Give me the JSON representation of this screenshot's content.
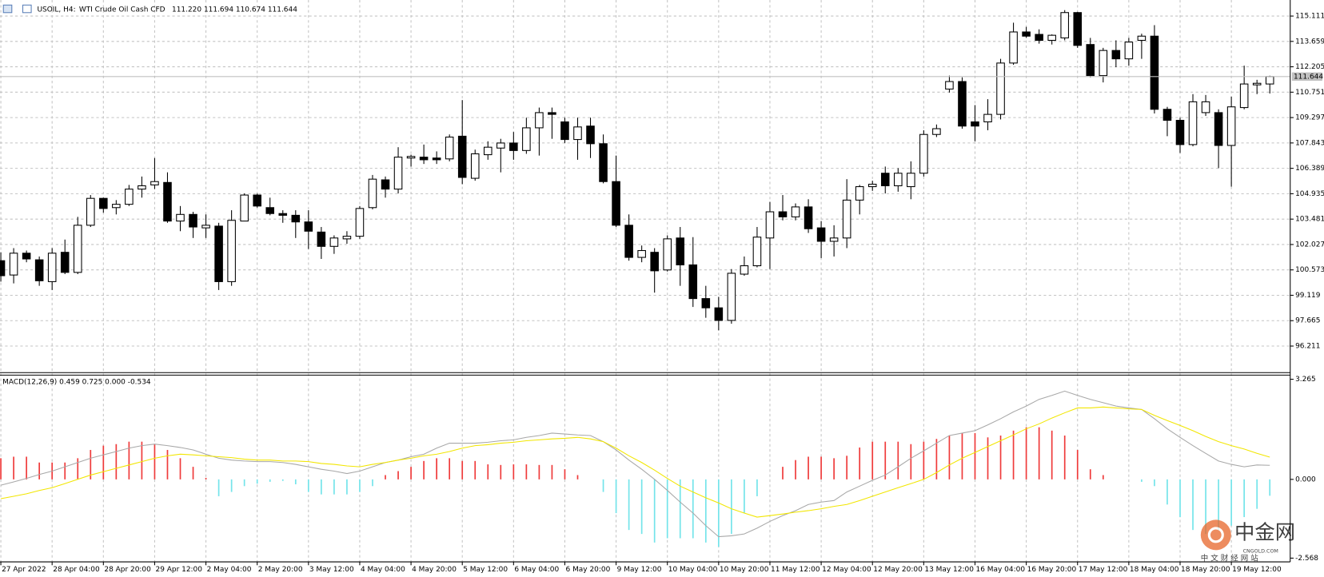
{
  "chart_data": [
    {
      "type": "candlestick",
      "symbol": "USOIL, H4:",
      "description": "WTI Crude Oil Cash CFD",
      "ohlc_text": "111.220 111.694 110.674 111.644",
      "open": [
        101.1,
        100.28,
        101.53,
        101.15,
        99.9,
        101.58,
        100.43,
        103.13,
        104.67,
        104.14,
        104.33,
        105.2,
        105.44,
        105.58,
        103.37,
        103.75,
        102.98,
        103.08,
        99.9,
        103.37,
        104.86,
        104.14,
        103.8,
        103.7,
        103.32,
        102.74,
        101.92,
        102.35,
        102.5,
        104.14,
        105.73,
        105.2,
        106.98,
        107.03,
        106.98,
        106.93,
        108.23,
        105.82,
        107.17,
        107.55,
        107.84,
        107.41,
        108.71,
        109.58,
        109.05,
        108.04,
        108.81,
        107.8,
        105.63,
        103.13,
        101.29,
        101.58,
        100.57,
        102.4,
        100.86,
        98.93,
        98.4,
        97.68,
        100.33,
        100.81,
        102.4,
        103.9,
        103.61,
        104.18,
        102.98,
        102.21,
        102.4,
        104.57,
        105.34,
        106.11,
        105.39,
        105.34,
        106.11,
        108.33,
        110.93,
        111.36,
        109.05,
        109.05,
        109.48,
        112.42,
        114.2,
        114.06,
        113.72,
        113.86,
        115.31,
        113.48,
        111.7,
        113.14,
        112.66,
        113.72,
        113.96,
        109.77,
        109.14,
        107.75,
        109.58,
        109.58,
        107.7,
        109.87,
        111.17,
        111.22
      ],
      "high": [
        101.58,
        101.82,
        101.68,
        101.34,
        101.82,
        102.31,
        103.61,
        104.86,
        104.71,
        104.57,
        105.44,
        105.92,
        106.98,
        106.16,
        104.23,
        103.9,
        103.75,
        103.27,
        103.99,
        104.95,
        104.95,
        104.71,
        103.99,
        103.99,
        103.99,
        103.03,
        102.55,
        102.79,
        104.23,
        106.01,
        105.92,
        107.6,
        107.17,
        107.75,
        107.36,
        108.33,
        110.3,
        107.46,
        107.94,
        108.08,
        108.47,
        109.29,
        109.87,
        109.87,
        109.29,
        109.29,
        109.29,
        108.33,
        107.12,
        103.75,
        101.97,
        101.82,
        102.55,
        103.03,
        102.45,
        99.66,
        99.03,
        100.62,
        101.34,
        103.03,
        104.47,
        104.86,
        104.38,
        104.62,
        103.37,
        103.13,
        105.77,
        105.44,
        105.68,
        106.49,
        106.4,
        106.79,
        108.57,
        108.9,
        111.7,
        111.6,
        110.01,
        110.35,
        112.66,
        114.73,
        114.49,
        114.35,
        114.06,
        115.45,
        115.35,
        113.86,
        113.29,
        113.72,
        113.86,
        114.1,
        114.59,
        109.91,
        109.29,
        110.64,
        110.59,
        109.77,
        110.49,
        112.27,
        111.46,
        111.694
      ],
      "low": [
        99.9,
        99.8,
        101.01,
        99.66,
        99.42,
        100.33,
        100.33,
        103.03,
        103.85,
        103.75,
        104.23,
        104.71,
        105.2,
        103.27,
        102.79,
        102.4,
        102.4,
        99.42,
        99.66,
        103.37,
        104.14,
        103.7,
        103.27,
        102.4,
        101.77,
        101.2,
        101.49,
        102.07,
        102.35,
        104.04,
        104.71,
        104.95,
        106.49,
        106.64,
        106.64,
        106.79,
        105.48,
        105.68,
        106.88,
        106.16,
        106.88,
        107.22,
        107.12,
        108.08,
        107.84,
        106.88,
        106.98,
        105.53,
        103.03,
        101.1,
        101.01,
        99.27,
        100.48,
        99.66,
        98.45,
        97.83,
        97.11,
        97.49,
        100.24,
        100.72,
        100.62,
        103.41,
        103.41,
        102.69,
        101.25,
        101.34,
        101.82,
        103.75,
        105.1,
        104.95,
        105.05,
        104.62,
        105.92,
        108.18,
        110.73,
        108.66,
        107.94,
        108.57,
        109.19,
        112.32,
        113.86,
        113.53,
        113.48,
        113.72,
        113.29,
        111.6,
        111.31,
        112.18,
        112.27,
        112.66,
        109.53,
        108.23,
        107.27,
        107.65,
        109.39,
        106.4,
        105.34,
        109.77,
        110.64,
        110.674
      ],
      "close": [
        100.24,
        101.53,
        101.2,
        99.95,
        101.53,
        100.43,
        103.13,
        104.67,
        104.09,
        104.33,
        105.2,
        105.39,
        105.63,
        103.37,
        103.75,
        103.03,
        103.13,
        99.9,
        103.41,
        104.86,
        104.23,
        103.8,
        103.7,
        103.32,
        102.79,
        101.92,
        102.4,
        102.5,
        104.09,
        105.77,
        105.2,
        107.03,
        107.07,
        106.88,
        106.88,
        108.18,
        105.87,
        107.22,
        107.6,
        107.84,
        107.41,
        108.71,
        109.58,
        109.48,
        108.04,
        108.76,
        107.8,
        105.63,
        103.13,
        101.29,
        101.68,
        100.52,
        102.35,
        100.86,
        98.93,
        98.4,
        97.68,
        100.38,
        100.81,
        102.45,
        103.9,
        103.61,
        104.18,
        102.93,
        102.21,
        102.4,
        104.57,
        105.34,
        105.48,
        105.39,
        106.11,
        106.11,
        108.33,
        108.66,
        111.36,
        108.81,
        108.81,
        109.48,
        112.42,
        114.2,
        113.96,
        113.72,
        114.01,
        115.31,
        113.43,
        111.7,
        113.14,
        112.66,
        113.62,
        113.96,
        109.77,
        109.14,
        107.75,
        110.2,
        110.2,
        107.7,
        109.91,
        111.22,
        111.26,
        111.644
      ],
      "up_color": "#ffffff",
      "down_color": "#000000",
      "outline_color": "#000000",
      "last_price": 111.644,
      "ylim": [
        94.69,
        116.03
      ],
      "yticks": [
        115.111,
        113.659,
        112.205,
        110.751,
        109.297,
        107.843,
        106.389,
        104.935,
        103.481,
        102.027,
        100.573,
        99.119,
        97.665,
        96.211
      ],
      "grid": true
    },
    {
      "type": "macd",
      "title": "MACD(12,26,9) 0.459 0.725 0.000 -0.534",
      "categories": [
        "27 Apr 2022",
        null,
        null,
        null,
        "28 Apr 04:00",
        null,
        null,
        null,
        "28 Apr 20:00",
        null,
        null,
        null,
        "29 Apr 12:00",
        null,
        null,
        null,
        "2 May 04:00",
        null,
        null,
        null,
        "2 May 20:00",
        null,
        null,
        null,
        "3 May 12:00",
        null,
        null,
        null,
        "4 May 04:00",
        null,
        null,
        null,
        "4 May 20:00",
        null,
        null,
        null,
        "5 May 12:00",
        null,
        null,
        null,
        "6 May 04:00",
        null,
        null,
        null,
        "6 May 20:00",
        null,
        null,
        null,
        "9 May 12:00",
        null,
        null,
        null,
        "10 May 04:00",
        null,
        null,
        null,
        "10 May 20:00",
        null,
        null,
        null,
        "11 May 12:00",
        null,
        null,
        null,
        "12 May 04:00",
        null,
        null,
        null,
        "12 May 20:00",
        null,
        null,
        null,
        "13 May 12:00",
        null,
        null,
        null,
        "16 May 04:00",
        null,
        null,
        null,
        "16 May 20:00",
        null,
        null,
        null,
        "17 May 12:00",
        null,
        null,
        null,
        "18 May 04:00",
        null,
        null,
        null,
        "18 May 20:00",
        null,
        null,
        null,
        "19 May 12:00",
        null,
        null,
        null
      ],
      "histogram": {
        "up_color": "#ef3b3b",
        "down_color": "#74e4ea",
        "values": [
          0.69,
          0.74,
          0.74,
          0.55,
          0.55,
          0.55,
          0.69,
          0.96,
          1.1,
          1.15,
          1.23,
          1.23,
          1.15,
          0.96,
          0.69,
          0.41,
          0.05,
          -0.55,
          -0.41,
          -0.22,
          -0.14,
          -0.08,
          -0.05,
          -0.16,
          -0.41,
          -0.49,
          -0.49,
          -0.49,
          -0.41,
          -0.22,
          0.14,
          0.27,
          0.41,
          0.6,
          0.69,
          0.69,
          0.6,
          0.6,
          0.49,
          0.47,
          0.49,
          0.49,
          0.47,
          0.47,
          0.33,
          0.14,
          0,
          -0.41,
          -1.1,
          -1.65,
          -1.78,
          -2.06,
          -1.92,
          -1.92,
          -1.92,
          -2.06,
          -2.2,
          -1.78,
          -1.1,
          -0.55,
          0,
          0.41,
          0.63,
          0.74,
          0.74,
          0.69,
          0.77,
          1.04,
          1.23,
          1.23,
          1.23,
          1.15,
          1.23,
          1.32,
          1.43,
          1.51,
          1.51,
          1.37,
          1.43,
          1.59,
          1.7,
          1.7,
          1.59,
          1.43,
          0.96,
          0.33,
          0.14,
          0,
          0,
          -0.08,
          -0.22,
          -0.82,
          -1.23,
          -1.65,
          -1.78,
          -1.65,
          -1.51,
          -1.23,
          -0.96,
          -0.534
        ]
      },
      "main_line": {
        "color": "#a8a8a8",
        "values": [
          -0.19,
          -0.08,
          0.03,
          0.16,
          0.27,
          0.41,
          0.55,
          0.69,
          0.8,
          0.91,
          1.02,
          1.1,
          1.15,
          1.1,
          1.04,
          0.96,
          0.82,
          0.69,
          0.63,
          0.6,
          0.58,
          0.58,
          0.55,
          0.49,
          0.41,
          0.33,
          0.27,
          0.19,
          0.27,
          0.41,
          0.55,
          0.63,
          0.74,
          0.82,
          1.02,
          1.18,
          1.18,
          1.18,
          1.21,
          1.26,
          1.29,
          1.37,
          1.43,
          1.51,
          1.48,
          1.45,
          1.43,
          1.23,
          0.96,
          0.63,
          0.33,
          0,
          -0.36,
          -0.74,
          -1.1,
          -1.51,
          -1.87,
          -1.84,
          -1.78,
          -1.59,
          -1.37,
          -1.18,
          -1.02,
          -0.82,
          -0.74,
          -0.69,
          -0.41,
          -0.22,
          -0.03,
          0.14,
          0.41,
          0.69,
          0.93,
          1.18,
          1.43,
          1.51,
          1.59,
          1.78,
          1.98,
          2.2,
          2.39,
          2.61,
          2.74,
          2.88,
          2.74,
          2.61,
          2.5,
          2.39,
          2.33,
          2.28,
          1.98,
          1.65,
          1.37,
          1.1,
          0.85,
          0.6,
          0.49,
          0.41,
          0.47,
          0.459
        ]
      },
      "signal_line": {
        "color": "#f2e600",
        "values": [
          -0.63,
          -0.55,
          -0.47,
          -0.36,
          -0.27,
          -0.14,
          0,
          0.14,
          0.25,
          0.36,
          0.47,
          0.58,
          0.69,
          0.77,
          0.82,
          0.8,
          0.77,
          0.74,
          0.71,
          0.66,
          0.63,
          0.63,
          0.6,
          0.6,
          0.58,
          0.52,
          0.49,
          0.44,
          0.41,
          0.49,
          0.55,
          0.63,
          0.69,
          0.77,
          0.82,
          0.91,
          1.02,
          1.1,
          1.13,
          1.18,
          1.21,
          1.26,
          1.29,
          1.32,
          1.34,
          1.37,
          1.32,
          1.23,
          1.02,
          0.77,
          0.55,
          0.3,
          0.03,
          -0.22,
          -0.41,
          -0.6,
          -0.77,
          -0.96,
          -1.1,
          -1.23,
          -1.18,
          -1.13,
          -1.07,
          -1.02,
          -0.96,
          -0.88,
          -0.82,
          -0.69,
          -0.55,
          -0.41,
          -0.27,
          -0.14,
          0,
          0.22,
          0.47,
          0.69,
          0.88,
          1.07,
          1.26,
          1.45,
          1.65,
          1.81,
          2.0,
          2.17,
          2.33,
          2.33,
          2.36,
          2.33,
          2.3,
          2.28,
          2.09,
          1.92,
          1.76,
          1.59,
          1.4,
          1.23,
          1.1,
          0.99,
          0.85,
          0.725
        ]
      },
      "ylim": [
        -2.69,
        3.4
      ],
      "yticks": [
        3.265,
        {
          "value": 0,
          "label": "0.000"
        },
        -2.568
      ],
      "grid": true
    }
  ],
  "watermark": {
    "brand": "中金网",
    "site": "CNGOLD.COM",
    "slogan": "中 文 财 经 网 站"
  }
}
